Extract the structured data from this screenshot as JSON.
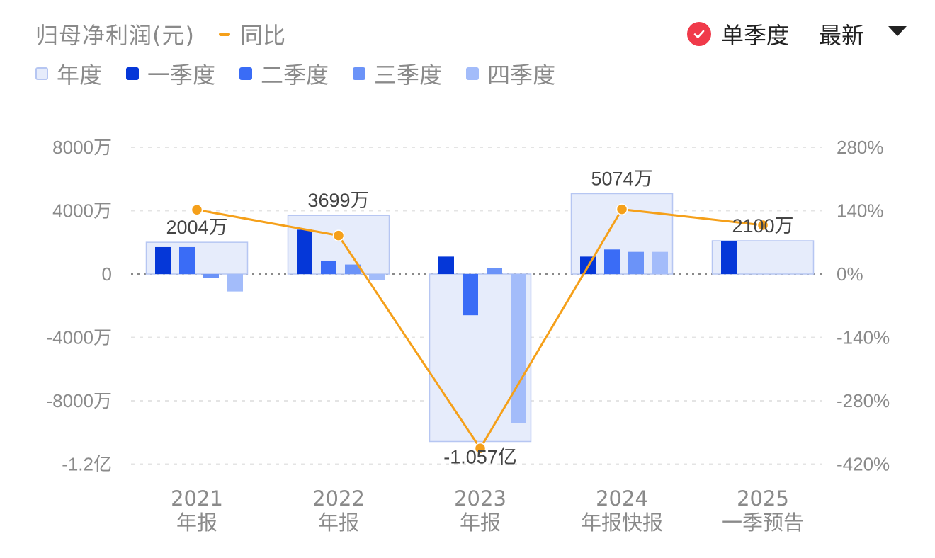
{
  "header": {
    "title": "归母净利润(元)",
    "yoy_legend": "同比",
    "toggle_label": "单季度",
    "select_value": "最新"
  },
  "legend": [
    {
      "label": "年度",
      "color": "#e6ecfb",
      "border": "#b6c6f2"
    },
    {
      "label": "一季度",
      "color": "#0537d8"
    },
    {
      "label": "二季度",
      "color": "#3a6cf6"
    },
    {
      "label": "三季度",
      "color": "#6b93f8"
    },
    {
      "label": "四季度",
      "color": "#a3bcfa"
    }
  ],
  "chart_data": {
    "type": "bar",
    "categories": [
      {
        "year": "2021",
        "kind": "年报"
      },
      {
        "year": "2022",
        "kind": "年报"
      },
      {
        "year": "2023",
        "kind": "年报"
      },
      {
        "year": "2024",
        "kind": "年报快报"
      },
      {
        "year": "2025",
        "kind": "一季预告"
      }
    ],
    "series": [
      {
        "name": "年度",
        "values": [
          20040000,
          36990000,
          -105700000,
          50740000,
          21000000
        ],
        "labels": [
          "2004万",
          "3699万",
          "-1.057亿",
          "5074万",
          "2100万"
        ]
      },
      {
        "name": "一季度",
        "values": [
          17000000,
          28000000,
          11000000,
          11000000,
          21000000
        ]
      },
      {
        "name": "二季度",
        "values": [
          17000000,
          8500000,
          -26000000,
          15500000,
          null
        ]
      },
      {
        "name": "三季度",
        "values": [
          -2500000,
          6000000,
          4000000,
          14000000,
          null
        ]
      },
      {
        "name": "四季度",
        "values": [
          -11000000,
          -4000000,
          -94000000,
          14000000,
          null
        ]
      },
      {
        "name": "同比",
        "axis": "right",
        "unit": "%",
        "values": [
          142,
          85,
          -385,
          143,
          108
        ]
      }
    ],
    "y_left": {
      "ylim": [
        -120000000,
        80000000
      ],
      "ticks": [
        80000000,
        40000000,
        0,
        -40000000,
        -80000000,
        -120000000
      ],
      "tick_labels": [
        "8000万",
        "4000万",
        "0",
        "-4000万",
        "-8000万",
        "-1.2亿"
      ]
    },
    "y_right": {
      "ylim": [
        -420,
        280
      ],
      "ticks": [
        280,
        140,
        0,
        -140,
        -280,
        -420
      ],
      "tick_labels": [
        "280%",
        "140%",
        "0%",
        "-140%",
        "-280%",
        "-420%"
      ]
    },
    "grid": true,
    "legend_position": "top-left"
  }
}
